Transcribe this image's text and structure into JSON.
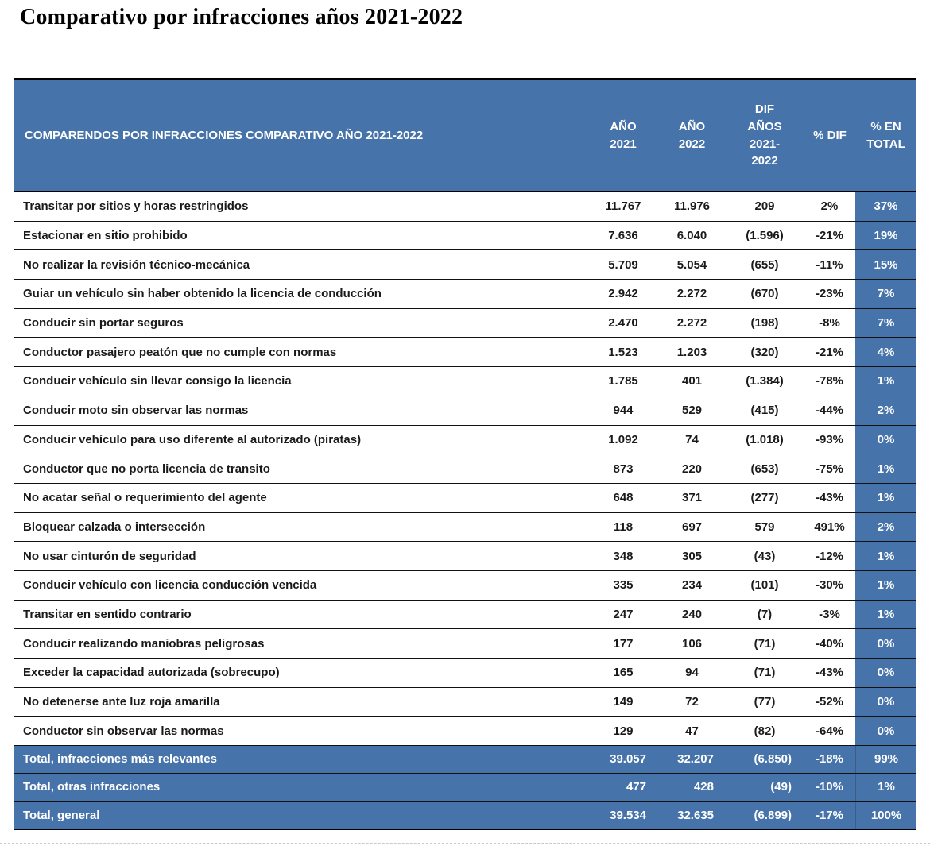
{
  "page_title": "Comparativo por infracciones años 2021-2022",
  "colors": {
    "header_blue": "#4673aa",
    "row_border": "#111111",
    "text": "#1a1a1a",
    "header_text": "#ffffff"
  },
  "table": {
    "first_col_header": "COMPARENDOS POR INFRACCIONES COMPARATIVO AÑO 2021-2022",
    "col_headers": [
      "AÑO\n2021",
      "AÑO\n2022",
      "DIF\nAÑOS\n2021-\n2022",
      "% DIF",
      "% EN\nTOTAL"
    ],
    "rows": [
      {
        "label": "Transitar por sitios y horas restringidos",
        "y2021": "11.767",
        "y2022": "11.976",
        "dif": "209",
        "pdif": "2%",
        "ptotal": "37%"
      },
      {
        "label": "Estacionar en sitio prohibido",
        "y2021": "7.636",
        "y2022": "6.040",
        "dif": "(1.596)",
        "pdif": "-21%",
        "ptotal": "19%"
      },
      {
        "label": "No realizar la revisión técnico-mecánica",
        "y2021": "5.709",
        "y2022": "5.054",
        "dif": "(655)",
        "pdif": "-11%",
        "ptotal": "15%"
      },
      {
        "label": "Guiar un vehículo sin haber obtenido la licencia de conducción",
        "y2021": "2.942",
        "y2022": "2.272",
        "dif": "(670)",
        "pdif": "-23%",
        "ptotal": "7%"
      },
      {
        "label": "Conducir sin portar seguros",
        "y2021": "2.470",
        "y2022": "2.272",
        "dif": "(198)",
        "pdif": "-8%",
        "ptotal": "7%"
      },
      {
        "label": "Conductor pasajero peatón que no cumple con normas",
        "y2021": "1.523",
        "y2022": "1.203",
        "dif": "(320)",
        "pdif": "-21%",
        "ptotal": "4%"
      },
      {
        "label": "Conducir vehículo sin llevar consigo la licencia",
        "y2021": "1.785",
        "y2022": "401",
        "dif": "(1.384)",
        "pdif": "-78%",
        "ptotal": "1%"
      },
      {
        "label": "Conducir moto sin observar las normas",
        "y2021": "944",
        "y2022": "529",
        "dif": "(415)",
        "pdif": "-44%",
        "ptotal": "2%"
      },
      {
        "label": "Conducir vehículo para uso diferente al autorizado (piratas)",
        "y2021": "1.092",
        "y2022": "74",
        "dif": "(1.018)",
        "pdif": "-93%",
        "ptotal": "0%"
      },
      {
        "label": "Conductor que no porta licencia de transito",
        "y2021": "873",
        "y2022": "220",
        "dif": "(653)",
        "pdif": "-75%",
        "ptotal": "1%"
      },
      {
        "label": "No acatar señal o requerimiento del agente",
        "y2021": "648",
        "y2022": "371",
        "dif": "(277)",
        "pdif": "-43%",
        "ptotal": "1%"
      },
      {
        "label": "Bloquear calzada o intersección",
        "y2021": "118",
        "y2022": "697",
        "dif": "579",
        "pdif": "491%",
        "ptotal": "2%"
      },
      {
        "label": "No usar cinturón de seguridad",
        "y2021": "348",
        "y2022": "305",
        "dif": "(43)",
        "pdif": "-12%",
        "ptotal": "1%"
      },
      {
        "label": "Conducir vehículo con licencia conducción vencida",
        "y2021": "335",
        "y2022": "234",
        "dif": "(101)",
        "pdif": "-30%",
        "ptotal": "1%"
      },
      {
        "label": "Transitar en sentido contrario",
        "y2021": "247",
        "y2022": "240",
        "dif": "(7)",
        "pdif": "-3%",
        "ptotal": "1%"
      },
      {
        "label": "Conducir realizando maniobras peligrosas",
        "y2021": "177",
        "y2022": "106",
        "dif": "(71)",
        "pdif": "-40%",
        "ptotal": "0%"
      },
      {
        "label": "Exceder la capacidad autorizada (sobrecupo)",
        "y2021": "165",
        "y2022": "94",
        "dif": "(71)",
        "pdif": "-43%",
        "ptotal": "0%"
      },
      {
        "label": "No detenerse ante luz roja amarilla",
        "y2021": "149",
        "y2022": "72",
        "dif": "(77)",
        "pdif": "-52%",
        "ptotal": "0%"
      },
      {
        "label": "Conductor sin observar las normas",
        "y2021": "129",
        "y2022": "47",
        "dif": "(82)",
        "pdif": "-64%",
        "ptotal": "0%"
      }
    ],
    "totals": [
      {
        "label": "Total, infracciones más relevantes",
        "y2021": "39.057",
        "y2022": "32.207",
        "dif": "(6.850)",
        "pdif": "-18%",
        "ptotal": "99%"
      },
      {
        "label": "Total, otras infracciones",
        "y2021": "477",
        "y2022": "428",
        "dif": "(49)",
        "pdif": "-10%",
        "ptotal": "1%"
      },
      {
        "label": "Total, general",
        "y2021": "39.534",
        "y2022": "32.635",
        "dif": "(6.899)",
        "pdif": "-17%",
        "ptotal": "100%"
      }
    ]
  }
}
